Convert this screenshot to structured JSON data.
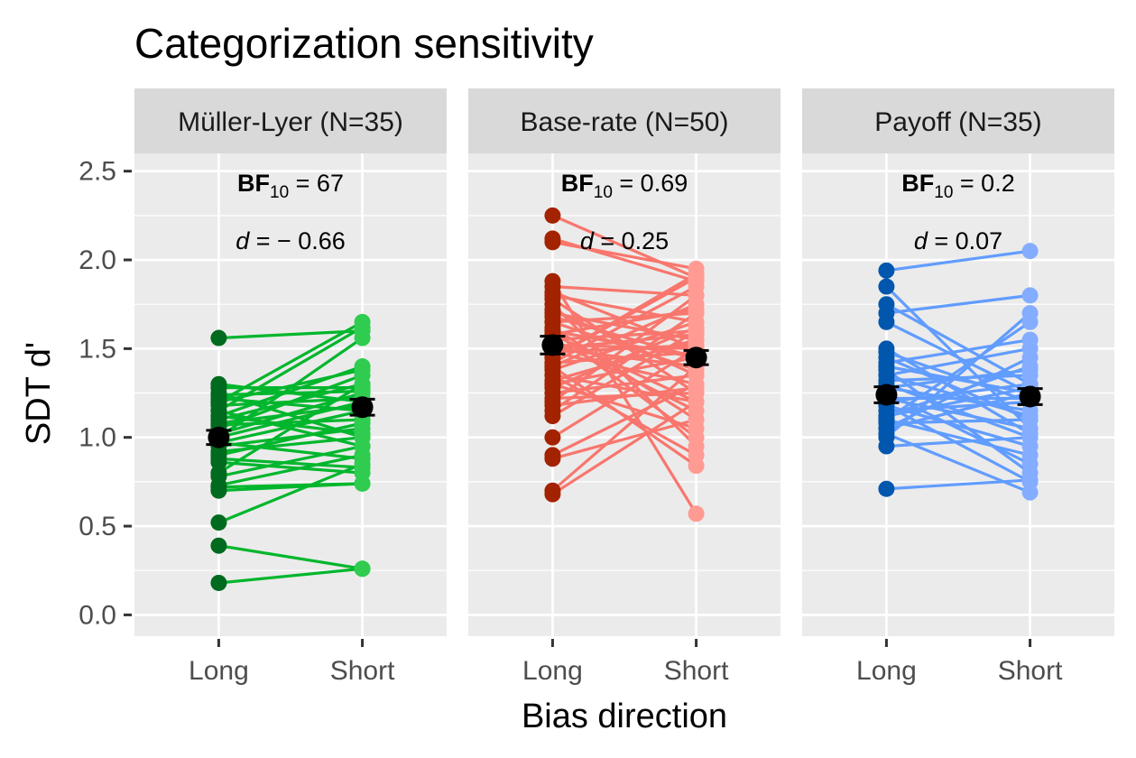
{
  "chart_data": {
    "type": "scatter",
    "title": "Categorization sensitivity",
    "xlabel": "Bias direction",
    "ylabel": "SDT d'",
    "ylim": [
      -0.12,
      2.6
    ],
    "y_ticks": [
      "0.0",
      "0.5",
      "1.0",
      "1.5",
      "2.0",
      "2.5"
    ],
    "categories": [
      "Long",
      "Short"
    ],
    "grid": true,
    "panels": [
      {
        "name": "Müller-Lyer (N=35)",
        "bf_label": "BF",
        "bf_sub": "10",
        "bf_value": " = 67",
        "d_label": "d",
        "d_value": " = − 0.66",
        "colors": {
          "long": "#006a1e",
          "short": "#2fcc4f",
          "line": "#00b62c"
        },
        "pairs": [
          [
            0.18,
            0.26
          ],
          [
            0.39,
            0.26
          ],
          [
            0.52,
            0.85
          ],
          [
            0.7,
            0.74
          ],
          [
            0.72,
            0.74
          ],
          [
            0.73,
            0.9
          ],
          [
            0.78,
            0.95
          ],
          [
            0.8,
            1.3
          ],
          [
            0.88,
            0.83
          ],
          [
            0.9,
            1.08
          ],
          [
            0.92,
            1.0
          ],
          [
            0.95,
            1.05
          ],
          [
            0.97,
            1.15
          ],
          [
            1.0,
            1.2
          ],
          [
            1.02,
            1.25
          ],
          [
            1.05,
            1.35
          ],
          [
            1.07,
            1.1
          ],
          [
            1.1,
            1.3
          ],
          [
            1.12,
            1.4
          ],
          [
            1.15,
            0.95
          ],
          [
            1.18,
            1.22
          ],
          [
            1.2,
            1.38
          ],
          [
            1.22,
            1.15
          ],
          [
            1.25,
            1.0
          ],
          [
            1.28,
            1.28
          ],
          [
            1.3,
            1.2
          ],
          [
            1.0,
            1.56
          ],
          [
            1.15,
            1.62
          ],
          [
            1.2,
            1.65
          ],
          [
            1.56,
            1.6
          ],
          [
            1.08,
            1.18
          ],
          [
            0.97,
            0.88
          ],
          [
            1.12,
            1.02
          ],
          [
            1.24,
            1.26
          ],
          [
            0.86,
            0.8
          ]
        ],
        "mean": [
          1.0,
          1.17
        ],
        "se": [
          0.04,
          0.045
        ]
      },
      {
        "name": "Base-rate (N=50)",
        "bf_label": "BF",
        "bf_sub": "10",
        "bf_value": " = 0.69",
        "d_label": "d",
        "d_value": " = 0.25",
        "colors": {
          "long": "#a32200",
          "short": "#ff9b93",
          "line": "#f8766d"
        },
        "pairs": [
          [
            0.68,
            1.2
          ],
          [
            0.7,
            1.4
          ],
          [
            0.88,
            1.1
          ],
          [
            0.9,
            1.3
          ],
          [
            1.0,
            1.5
          ],
          [
            1.12,
            1.6
          ],
          [
            1.15,
            1.7
          ],
          [
            1.2,
            1.8
          ],
          [
            1.22,
            1.25
          ],
          [
            1.25,
            1.35
          ],
          [
            1.3,
            1.45
          ],
          [
            1.32,
            1.55
          ],
          [
            1.35,
            1.2
          ],
          [
            1.38,
            1.65
          ],
          [
            1.4,
            1.75
          ],
          [
            1.42,
            1.85
          ],
          [
            1.45,
            1.9
          ],
          [
            1.48,
            1.3
          ],
          [
            1.5,
            1.4
          ],
          [
            1.52,
            1.5
          ],
          [
            1.55,
            1.6
          ],
          [
            1.58,
            1.2
          ],
          [
            1.6,
            1.0
          ],
          [
            1.62,
            1.1
          ],
          [
            1.65,
            1.7
          ],
          [
            1.68,
            1.45
          ],
          [
            1.7,
            1.55
          ],
          [
            1.72,
            1.35
          ],
          [
            1.75,
            0.95
          ],
          [
            1.78,
            1.25
          ],
          [
            1.8,
            1.65
          ],
          [
            1.82,
            1.5
          ],
          [
            1.85,
            1.8
          ],
          [
            1.88,
            0.57
          ],
          [
            1.4,
            0.84
          ],
          [
            1.35,
            0.9
          ],
          [
            1.3,
            1.05
          ],
          [
            1.55,
            1.15
          ],
          [
            1.6,
            1.45
          ],
          [
            2.1,
            1.95
          ],
          [
            2.12,
            1.88
          ],
          [
            2.25,
            1.9
          ],
          [
            1.45,
            1.92
          ],
          [
            1.5,
            1.58
          ],
          [
            1.28,
            1.62
          ],
          [
            1.18,
            1.28
          ],
          [
            1.65,
            1.38
          ],
          [
            1.42,
            1.48
          ],
          [
            1.58,
            1.72
          ],
          [
            1.48,
            1.52
          ]
        ],
        "mean": [
          1.52,
          1.45
        ],
        "se": [
          0.05,
          0.04
        ]
      },
      {
        "name": "Payoff (N=35)",
        "bf_label": "BF",
        "bf_sub": "10",
        "bf_value": " = 0.2",
        "d_label": "d",
        "d_value": " = 0.07",
        "colors": {
          "long": "#0057ad",
          "short": "#84adff",
          "line": "#619cff"
        },
        "pairs": [
          [
            0.71,
            0.76
          ],
          [
            0.95,
            1.0
          ],
          [
            1.0,
            1.7
          ],
          [
            1.02,
            0.69
          ],
          [
            1.05,
            1.25
          ],
          [
            1.08,
            1.1
          ],
          [
            1.1,
            0.9
          ],
          [
            1.12,
            1.4
          ],
          [
            1.15,
            1.2
          ],
          [
            1.18,
            0.95
          ],
          [
            1.2,
            1.3
          ],
          [
            1.22,
            1.05
          ],
          [
            1.25,
            0.85
          ],
          [
            1.28,
            1.15
          ],
          [
            1.3,
            1.0
          ],
          [
            1.32,
            1.35
          ],
          [
            1.35,
            1.5
          ],
          [
            1.38,
            0.8
          ],
          [
            1.4,
            1.25
          ],
          [
            1.42,
            1.55
          ],
          [
            1.45,
            1.1
          ],
          [
            1.48,
            1.2
          ],
          [
            1.5,
            1.02
          ],
          [
            1.65,
            1.25
          ],
          [
            1.7,
            1.8
          ],
          [
            1.75,
            1.3
          ],
          [
            1.85,
            1.05
          ],
          [
            1.94,
            2.05
          ],
          [
            1.1,
            1.65
          ],
          [
            1.05,
            1.45
          ],
          [
            1.18,
            0.75
          ],
          [
            1.28,
            1.38
          ],
          [
            1.12,
            1.28
          ],
          [
            1.22,
            1.22
          ],
          [
            1.35,
            1.12
          ]
        ],
        "mean": [
          1.24,
          1.23
        ],
        "se": [
          0.045,
          0.045
        ]
      }
    ]
  }
}
